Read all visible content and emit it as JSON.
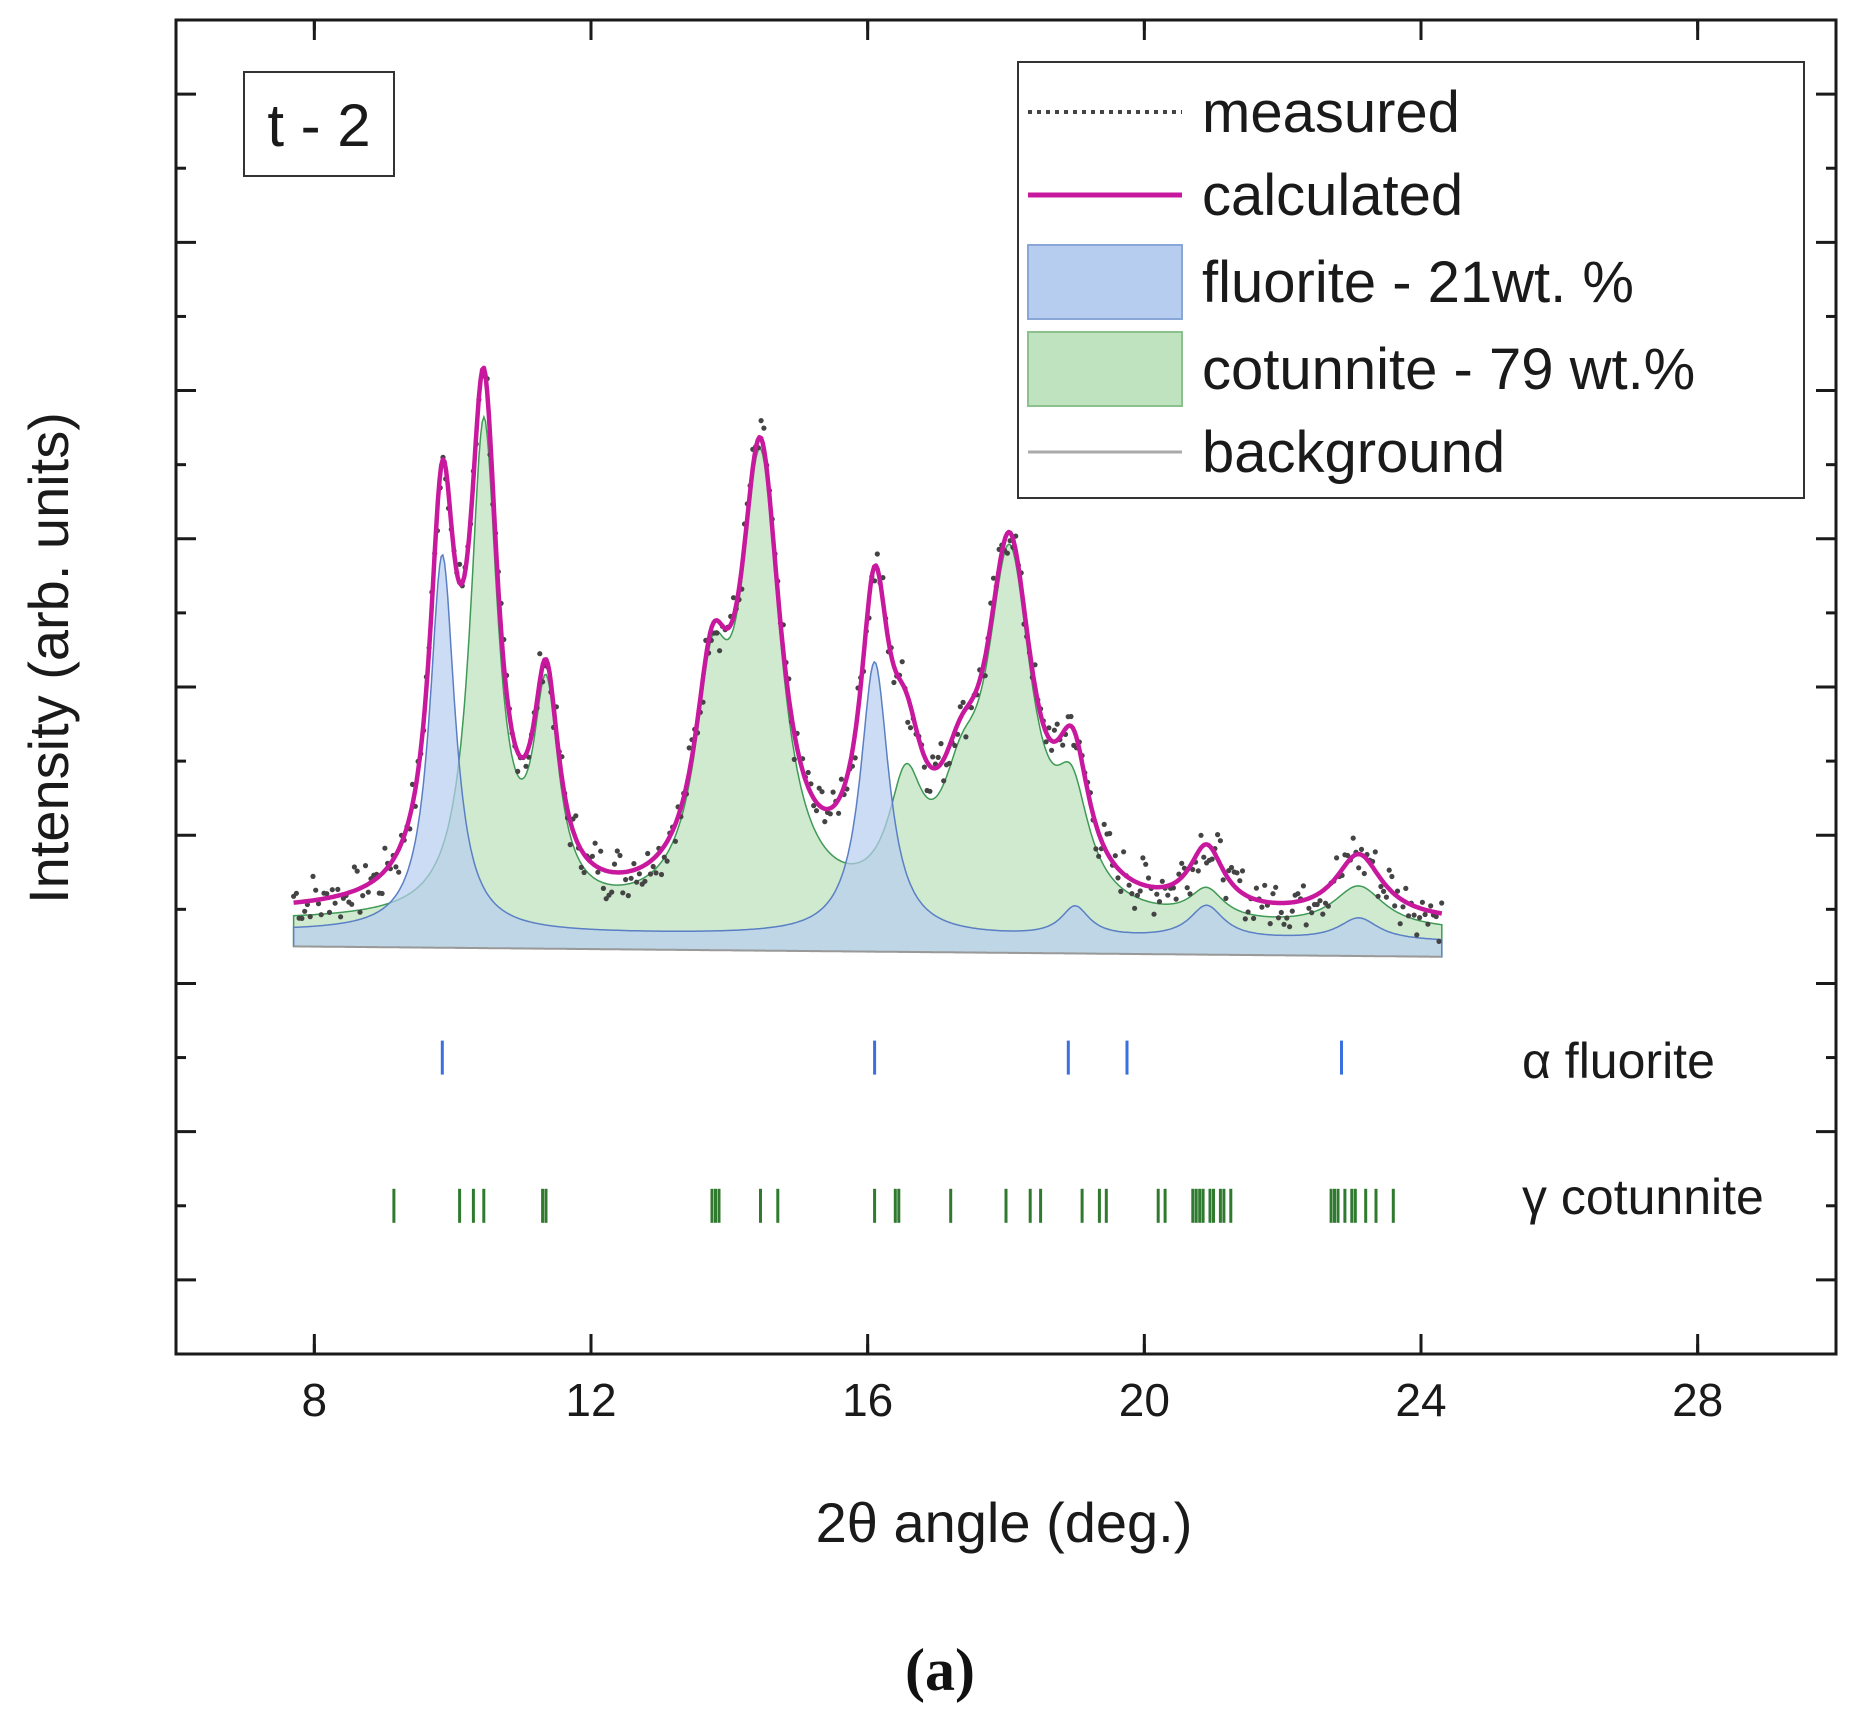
{
  "chart_data": {
    "type": "line",
    "title": "",
    "sample_label": "t - 2",
    "xlabel": "2θ angle (deg.)",
    "ylabel": "Intensity (arb. units)",
    "xlim": [
      6,
      30
    ],
    "ylim": [
      0,
      9
    ],
    "x_ticks": [
      8,
      12,
      16,
      20,
      24,
      28
    ],
    "x_tick_labels": [
      "8",
      "12",
      "16",
      "20",
      "24",
      "28"
    ],
    "y_ticks": [
      0.5,
      1.5,
      2.5,
      3.5,
      4.5,
      5.5,
      6.5,
      7.5,
      8.5
    ],
    "y_tick_labels_visible": false,
    "grid": false,
    "legend_position": "top-right",
    "legend": {
      "measured": "measured",
      "calculated": "calculated",
      "fluorite": "fluorite - 21wt. %",
      "cotunnite": "cotunnite - 79 wt.%",
      "background": "background"
    },
    "colors": {
      "measured": "#444444",
      "calculated": "#c8189e",
      "fluorite_fill": "#b7cdf0",
      "fluorite_line": "#5b7fc4",
      "cotunnite_fill": "#bfe3bf",
      "cotunnite_line": "#3f9a55",
      "background": "#999999",
      "fluorite_ticks": "#3a6fe0",
      "cotunnite_ticks": "#2f7a2f"
    },
    "x_range": [
      7.7,
      24.3
    ],
    "background_line": {
      "x0": 7.7,
      "y0": 2.75,
      "x1": 24.3,
      "y1": 2.68
    },
    "fluorite_peaks": [
      {
        "center": 9.85,
        "height": 2.55,
        "width": 0.22
      },
      {
        "center": 16.1,
        "height": 1.85,
        "width": 0.25
      },
      {
        "center": 19.0,
        "height": 0.2,
        "width": 0.25
      },
      {
        "center": 20.9,
        "height": 0.22,
        "width": 0.3
      },
      {
        "center": 23.1,
        "height": 0.15,
        "width": 0.35
      }
    ],
    "cotunnite_peaks": [
      {
        "center": 10.45,
        "height": 3.3,
        "width": 0.24
      },
      {
        "center": 11.35,
        "height": 1.4,
        "width": 0.22
      },
      {
        "center": 13.75,
        "height": 1.3,
        "width": 0.3
      },
      {
        "center": 14.45,
        "height": 2.95,
        "width": 0.35
      },
      {
        "center": 16.55,
        "height": 0.75,
        "width": 0.3
      },
      {
        "center": 17.35,
        "height": 0.55,
        "width": 0.35
      },
      {
        "center": 18.05,
        "height": 2.35,
        "width": 0.4
      },
      {
        "center": 18.95,
        "height": 0.65,
        "width": 0.3
      },
      {
        "center": 20.9,
        "height": 0.2,
        "width": 0.3
      },
      {
        "center": 23.1,
        "height": 0.28,
        "width": 0.45
      }
    ],
    "series": [
      {
        "name": "measured",
        "style": "dotted",
        "x_start": 7.7,
        "x_end": 24.3,
        "x_step": 0.04
      },
      {
        "name": "calculated",
        "style": "solid"
      },
      {
        "name": "fluorite - 21wt. %",
        "style": "filled"
      },
      {
        "name": "cotunnite - 79 wt.%",
        "style": "filled"
      },
      {
        "name": "background",
        "style": "solid"
      }
    ],
    "phase_markers": [
      {
        "label": "α fluorite",
        "y": 2.0,
        "positions": [
          9.85,
          16.1,
          18.9,
          19.75,
          22.85
        ]
      },
      {
        "label": "γ cotunnite",
        "y": 1.0,
        "positions": [
          9.15,
          10.1,
          10.3,
          10.45,
          11.3,
          11.35,
          13.75,
          13.8,
          13.85,
          14.45,
          14.7,
          16.1,
          16.4,
          16.45,
          17.2,
          18.0,
          18.35,
          18.5,
          19.1,
          19.35,
          19.45,
          20.2,
          20.3,
          20.7,
          20.75,
          20.8,
          20.85,
          20.95,
          21.0,
          21.1,
          21.15,
          21.25,
          22.7,
          22.75,
          22.8,
          22.9,
          23.0,
          23.05,
          23.2,
          23.35,
          23.6
        ]
      }
    ]
  },
  "caption": "(a)"
}
